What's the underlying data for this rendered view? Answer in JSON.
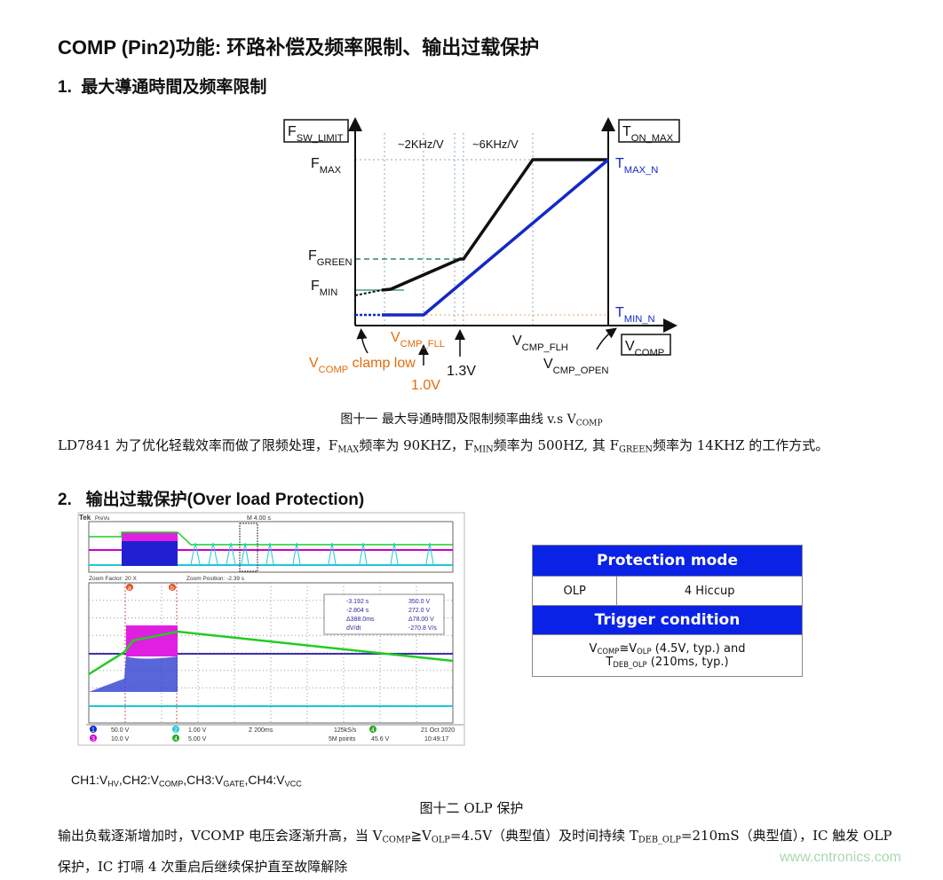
{
  "header": {
    "title": "COMP (Pin2)功能: 环路补偿及频率限制、输出过载保护"
  },
  "section1": {
    "heading": "1.  最大導通時間及频率限制",
    "diagram": {
      "left_axis": [
        {
          "text": "F"
        },
        {
          "text": "SW_LIMIT",
          "sub": true
        }
      ],
      "right_axis": [
        {
          "text": "T"
        },
        {
          "text": "ON_MAX",
          "sub": true
        }
      ],
      "slope1": "~2KHz/V",
      "slope2": "~6KHz/V",
      "f_max": [
        {
          "text": "F"
        },
        {
          "text": "MAX",
          "sub": true
        }
      ],
      "t_max": [
        {
          "text": "T"
        },
        {
          "text": "MAX_N",
          "sub": true
        }
      ],
      "f_green": [
        {
          "text": "F"
        },
        {
          "text": "GREEN",
          "sub": true
        }
      ],
      "f_min": [
        {
          "text": "F"
        },
        {
          "text": "MIN",
          "sub": true
        }
      ],
      "t_min": [
        {
          "text": "T"
        },
        {
          "text": "MIN_N",
          "sub": true
        }
      ],
      "v_fll": [
        {
          "text": "V"
        },
        {
          "text": "CMP_FLL",
          "sub": true
        }
      ],
      "v_flh": [
        {
          "text": "V"
        },
        {
          "text": "CMP_FLH",
          "sub": true
        }
      ],
      "x_axis": [
        {
          "text": "V"
        },
        {
          "text": "COMP",
          "sub": true
        }
      ],
      "clamp": [
        {
          "text": "V"
        },
        {
          "text": "COMP",
          "sub": true
        },
        {
          "text": " clamp low"
        }
      ],
      "v1": "1.0V",
      "v2": "1.3V",
      "v_open": [
        {
          "text": "V"
        },
        {
          "text": "CMP_OPEN",
          "sub": true
        }
      ]
    },
    "caption": [
      {
        "text": "图十一  最大导通時間及限制频率曲线 v.s  V"
      },
      {
        "text": "COMP",
        "sub": true
      }
    ],
    "paragraph": [
      {
        "text": "LD7841 为了优化轻载效率而做了限频处理，F"
      },
      {
        "text": "MAX",
        "sub": true
      },
      {
        "text": "频率为 90KHZ，F"
      },
      {
        "text": "MIN",
        "sub": true
      },
      {
        "text": "频率为 500HZ, 其 F"
      },
      {
        "text": "GREEN",
        "sub": true
      },
      {
        "text": "频率为 14KHZ 的工作方式。"
      }
    ]
  },
  "section2": {
    "heading": "2.   输出过载保护(Over load Protection)",
    "scope": {
      "brand": "Tek",
      "mode": "PreVu",
      "timebase": "M 4.00 s",
      "zoom_factor": "Zoom Factor: 20 X",
      "zoom_position": "Zoom Position: -2.39 s",
      "cursor_a": "a",
      "cursor_b": "b",
      "readout": [
        [
          "-3.192 s",
          "350.0 V"
        ],
        [
          "-2.804 s",
          "272.0 V"
        ],
        [
          "Δ388.0ms",
          "Δ78.00 V"
        ],
        [
          "dV/dt",
          "-270.8 V/s"
        ]
      ],
      "ch1": "1",
      "ch1_scale": "50.0 V",
      "ch2": "2",
      "ch2_scale": "1.00 V",
      "ch3": "3",
      "ch3_scale": "10.0 V",
      "ch4": "4",
      "ch4_scale": "5.00 V",
      "zoom_time": "Z 200ms",
      "rate": "125kS/s",
      "points": "5M points",
      "trig_ch": "4",
      "trig_level": "45.6 V",
      "date": "21 Oct 2020",
      "time": "10:49:17"
    },
    "channel_note": [
      {
        "text": "CH1:V"
      },
      {
        "text": "HV",
        "sub": true
      },
      {
        "text": ",CH2:V"
      },
      {
        "text": "COMP",
        "sub": true
      },
      {
        "text": ",CH3:V"
      },
      {
        "text": "GATE",
        "sub": true
      },
      {
        "text": ",CH4:V"
      },
      {
        "text": "VCC",
        "sub": true
      }
    ],
    "table": {
      "header1": "Protection mode",
      "mode": "OLP",
      "mode_value": "4 Hiccup",
      "header2": "Trigger condition",
      "condition_line1": [
        {
          "text": "V"
        },
        {
          "text": "COMP",
          "sub": true
        },
        {
          "text": "≅V"
        },
        {
          "text": "OLP",
          "sub": true
        },
        {
          "text": " (4.5V, typ.) and"
        }
      ],
      "condition_line2": [
        {
          "text": "T"
        },
        {
          "text": "DEB_OLP",
          "sub": true
        },
        {
          "text": " (210ms, typ.)"
        }
      ]
    },
    "caption": "图十二  OLP 保护",
    "paragraph": [
      {
        "text": "输出负载逐渐增加时，VCOMP 电压会逐渐升高，当 V"
      },
      {
        "text": "COMP",
        "sub": true
      },
      {
        "text": "≧V"
      },
      {
        "text": "OLP",
        "sub": true
      },
      {
        "text": "=4.5V（典型值）及时间持续 T"
      },
      {
        "text": "DEB_OLP",
        "sub": true
      },
      {
        "text": "=210mS（典型值），IC 触发 OLP 保护，IC 打嗝 4 次重启后继续保护直至故障解除"
      }
    ]
  },
  "watermark": "www.cntronics.com"
}
